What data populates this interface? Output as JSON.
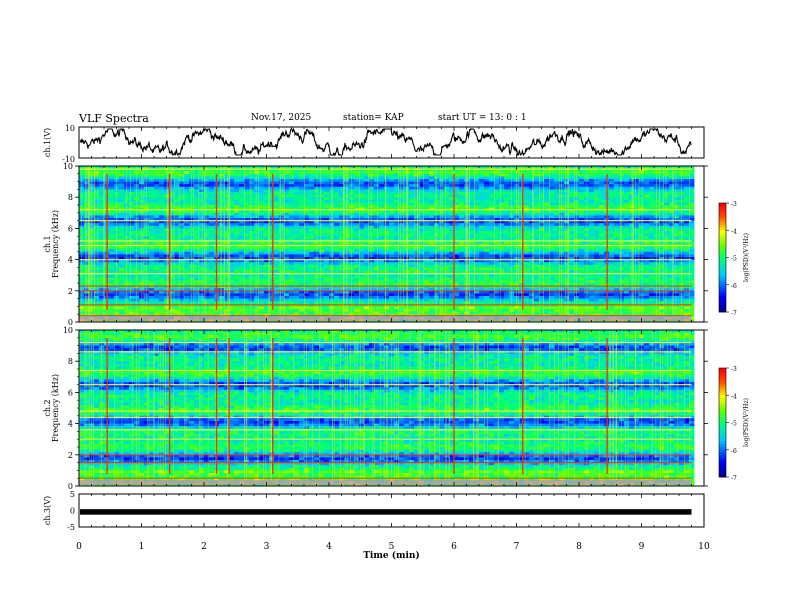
{
  "header": {
    "title": "VLF Spectra",
    "date": "Nov.17, 2025",
    "station": "station= KAP",
    "start_label": "start  UT =",
    "start_time": "13: 0  : 1"
  },
  "colorbar": {
    "label": "log(PSD)(V²/Hz)",
    "ticks": [
      "-3",
      "-4",
      "-5",
      "-6",
      "-7"
    ]
  },
  "chart_data": [
    {
      "type": "line",
      "name": "waveform-ch1",
      "ylabel": "ch.1(V)",
      "ylim": [
        -10,
        10
      ],
      "yticks": [
        "10",
        "-10"
      ],
      "xlim": [
        0,
        10
      ],
      "note": "noisy waveform, amplitude roughly -5 to 7 V, ends near 9.8 min"
    },
    {
      "type": "heatmap",
      "name": "spectrogram-ch1",
      "ylabel": "Frequency (kHz)",
      "channel_label": "ch.1",
      "ylim": [
        0,
        10
      ],
      "yticks": [
        "0",
        "2",
        "4",
        "6",
        "8",
        "10"
      ],
      "xlim": [
        0,
        10
      ],
      "clim": [
        -7,
        -3
      ],
      "horizontal_lines_khz": [
        0.4,
        1.1,
        2.0,
        2.3,
        3.1,
        4.0,
        4.9,
        5.2,
        6.5,
        7.2,
        9.8
      ],
      "strong_impulses_min": [
        0.45,
        1.45,
        2.2,
        3.1,
        6.0,
        7.1,
        8.45
      ]
    },
    {
      "type": "heatmap",
      "name": "spectrogram-ch2",
      "ylabel": "Frequency (kHz)",
      "channel_label": "ch.2",
      "ylim": [
        0,
        10
      ],
      "yticks": [
        "0",
        "2",
        "4",
        "6",
        "8",
        "10"
      ],
      "xlim": [
        0,
        10
      ],
      "clim": [
        -7,
        -3
      ],
      "horizontal_lines_khz": [
        0.5,
        1.5,
        2.0,
        3.0,
        3.6,
        4.4,
        4.8,
        6.5,
        7.4,
        8.6,
        9.2
      ],
      "strong_impulses_min": [
        0.45,
        1.45,
        2.2,
        2.4,
        3.1,
        6.0,
        7.1,
        8.45
      ]
    },
    {
      "type": "line",
      "name": "waveform-ch3",
      "ylabel": "ch.3(V)",
      "ylim": [
        -5,
        5
      ],
      "yticks": [
        "5",
        "0",
        "-5"
      ],
      "xlim": [
        0,
        10
      ],
      "xticks": [
        "0",
        "1",
        "2",
        "3",
        "4",
        "5",
        "6",
        "7",
        "8",
        "9",
        "10"
      ],
      "xlabel": "Time  (min)",
      "note": "flat thick band near -0.3 V from 0 to 9.8 min"
    }
  ]
}
